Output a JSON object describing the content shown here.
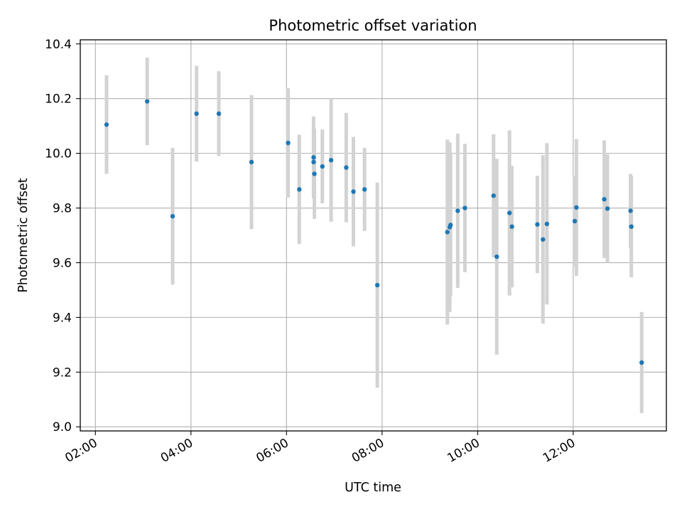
{
  "chart_data": {
    "type": "scatter",
    "title": "Photometric offset variation",
    "xlabel": "UTC time",
    "ylabel": "Photometric offset",
    "x_ticks": [
      "02:00",
      "04:00",
      "06:00",
      "08:00",
      "10:00",
      "12:00"
    ],
    "y_ticks": [
      "9.0",
      "9.2",
      "9.4",
      "9.6",
      "9.8",
      "10.0",
      "10.2",
      "10.4"
    ],
    "xlim": [
      "01:41",
      "13:57"
    ],
    "ylim": [
      8.985,
      10.415
    ],
    "grid": true,
    "marker_color": "#1f77b4",
    "errorbar_color": "#d3d3d3",
    "points": [
      {
        "t": "02:14",
        "y": 10.105,
        "err": 0.18
      },
      {
        "t": "03:05",
        "y": 10.19,
        "err": 0.16
      },
      {
        "t": "03:37",
        "y": 9.77,
        "err": 0.25
      },
      {
        "t": "04:07",
        "y": 10.145,
        "err": 0.175
      },
      {
        "t": "04:35",
        "y": 10.145,
        "err": 0.155
      },
      {
        "t": "05:16",
        "y": 9.968,
        "err": 0.245
      },
      {
        "t": "06:02",
        "y": 10.038,
        "err": 0.2
      },
      {
        "t": "06:16",
        "y": 9.868,
        "err": 0.2
      },
      {
        "t": "06:34",
        "y": 9.985,
        "err": 0.15
      },
      {
        "t": "06:34",
        "y": 9.968,
        "err": 0.12
      },
      {
        "t": "06:35",
        "y": 9.925,
        "err": 0.165
      },
      {
        "t": "06:45",
        "y": 9.952,
        "err": 0.135
      },
      {
        "t": "06:56",
        "y": 9.975,
        "err": 0.225
      },
      {
        "t": "07:15",
        "y": 9.948,
        "err": 0.2
      },
      {
        "t": "07:24",
        "y": 9.86,
        "err": 0.2
      },
      {
        "t": "07:38",
        "y": 9.868,
        "err": 0.152
      },
      {
        "t": "07:54",
        "y": 9.518,
        "err": 0.375
      },
      {
        "t": "09:22",
        "y": 9.712,
        "err": 0.338
      },
      {
        "t": "09:25",
        "y": 9.73,
        "err": 0.31
      },
      {
        "t": "09:26",
        "y": 9.738,
        "err": 0.26
      },
      {
        "t": "09:35",
        "y": 9.79,
        "err": 0.282
      },
      {
        "t": "09:44",
        "y": 9.8,
        "err": 0.235
      },
      {
        "t": "10:20",
        "y": 9.845,
        "err": 0.225
      },
      {
        "t": "10:24",
        "y": 9.622,
        "err": 0.358
      },
      {
        "t": "10:40",
        "y": 9.782,
        "err": 0.302
      },
      {
        "t": "10:43",
        "y": 9.732,
        "err": 0.222
      },
      {
        "t": "11:15",
        "y": 9.74,
        "err": 0.178
      },
      {
        "t": "11:22",
        "y": 9.685,
        "err": 0.308
      },
      {
        "t": "11:27",
        "y": 9.742,
        "err": 0.295
      },
      {
        "t": "12:02",
        "y": 9.752,
        "err": 0.165
      },
      {
        "t": "12:04",
        "y": 9.802,
        "err": 0.25
      },
      {
        "t": "12:39",
        "y": 9.832,
        "err": 0.215
      },
      {
        "t": "12:43",
        "y": 9.798,
        "err": 0.198
      },
      {
        "t": "13:12",
        "y": 9.79,
        "err": 0.135
      },
      {
        "t": "13:13",
        "y": 9.732,
        "err": 0.185
      },
      {
        "t": "13:26",
        "y": 9.235,
        "err": 0.185
      }
    ]
  }
}
